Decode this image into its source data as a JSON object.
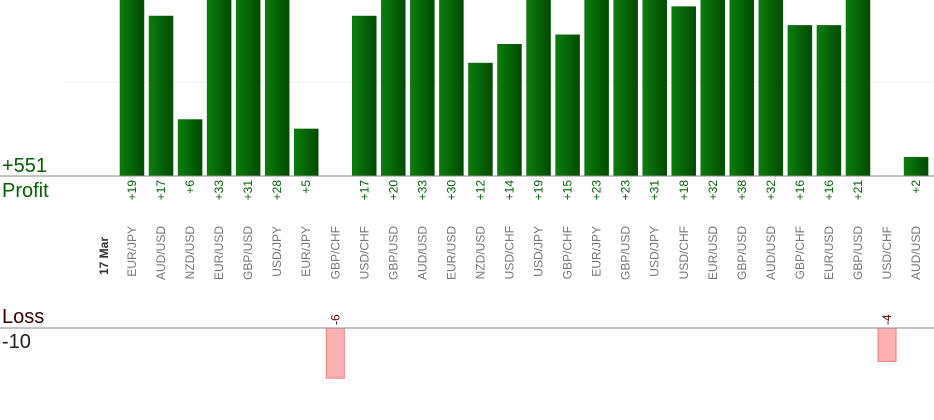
{
  "chart_data": {
    "type": "bar",
    "date_label": "17 Mar",
    "profit_scale_label": "+551",
    "loss_scale_label": "-10",
    "categories": [
      "EUR/JPY",
      "AUD/USD",
      "NZD/USD",
      "EUR/USD",
      "GBP/USD",
      "USD/JPY",
      "EUR/JPY",
      "GBP/CHF",
      "USD/CHF",
      "GBP/USD",
      "AUD/USD",
      "EUR/USD",
      "NZD/USD",
      "USD/CHF",
      "USD/JPY",
      "GBP/CHF",
      "EUR/JPY",
      "GBP/USD",
      "USD/JPY",
      "USD/CHF",
      "EUR/USD",
      "GBP/USD",
      "AUD/USD",
      "GBP/CHF",
      "EUR/USD",
      "GBP/USD",
      "USD/CHF",
      "AUD/USD"
    ],
    "ylim": [
      0,
      18.7
    ],
    "y2lim": [
      -11,
      0
    ],
    "series": [
      {
        "name": "Profit",
        "color": "#006400",
        "values": [
          19,
          17,
          6,
          33,
          31,
          28,
          5,
          null,
          17,
          20,
          33,
          30,
          12,
          14,
          19,
          15,
          23,
          23,
          31,
          18,
          32,
          38,
          32,
          16,
          16,
          21,
          null,
          2
        ],
        "value_labels": [
          "+19",
          "+17",
          "+6",
          "+33",
          "+31",
          "+28",
          "+5",
          null,
          "+17",
          "+20",
          "+33",
          "+30",
          "+12",
          "+14",
          "+19",
          "+15",
          "+23",
          "+23",
          "+31",
          "+18",
          "+32",
          "+38",
          "+32",
          "+16",
          "+16",
          "+21",
          null,
          "+2"
        ]
      },
      {
        "name": "Loss",
        "color": "#ffb0b0",
        "axis": "y2",
        "values": [
          null,
          null,
          null,
          null,
          null,
          null,
          null,
          -6,
          null,
          null,
          null,
          null,
          null,
          null,
          null,
          null,
          null,
          null,
          null,
          null,
          null,
          null,
          null,
          null,
          null,
          null,
          -4,
          null
        ]
      }
    ]
  }
}
